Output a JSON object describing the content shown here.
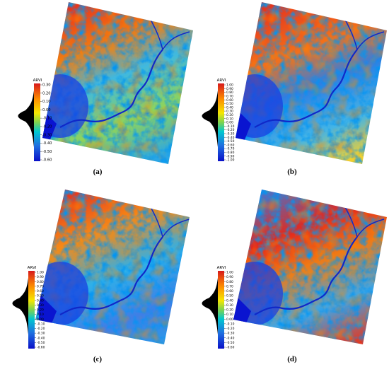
{
  "panels": [
    {
      "caption": "(a)",
      "colorbar": {
        "title": "ARVI",
        "ticks": [
          "0.30",
          "0.20",
          "0.10",
          "0.00",
          "-0.10",
          "-0.20",
          "-0.30",
          "-0.40",
          "-0.50",
          "-0.60"
        ]
      }
    },
    {
      "caption": "(b)",
      "colorbar": {
        "title": "ARVI",
        "ticks": [
          "1.00",
          "0.90",
          "0.80",
          "0.70",
          "0.60",
          "0.50",
          "0.40",
          "0.30",
          "0.20",
          "0.10",
          "0.00",
          "-0.10",
          "-0.20",
          "-0.30",
          "-0.40",
          "-0.50",
          "-0.60",
          "-0.70",
          "-0.80",
          "-0.90",
          "-1.00"
        ]
      }
    },
    {
      "caption": "(c)",
      "colorbar": {
        "title": "ARVI",
        "ticks": [
          "1.00",
          "0.90",
          "0.80",
          "0.70",
          "0.60",
          "0.50",
          "0.40",
          "0.30",
          "0.20",
          "0.10",
          "0.00",
          "-0.10",
          "-0.20",
          "-0.30",
          "-0.40",
          "-0.50",
          "-0.60"
        ]
      }
    },
    {
      "caption": "(d)",
      "colorbar": {
        "title": "ARVI",
        "ticks": [
          "1.00",
          "0.90",
          "0.80",
          "0.70",
          "0.60",
          "0.50",
          "0.40",
          "0.30",
          "0.20",
          "0.10",
          "0.00",
          "-0.10",
          "-0.20",
          "-0.30",
          "-0.40",
          "-0.50",
          "-0.60"
        ]
      }
    }
  ]
}
